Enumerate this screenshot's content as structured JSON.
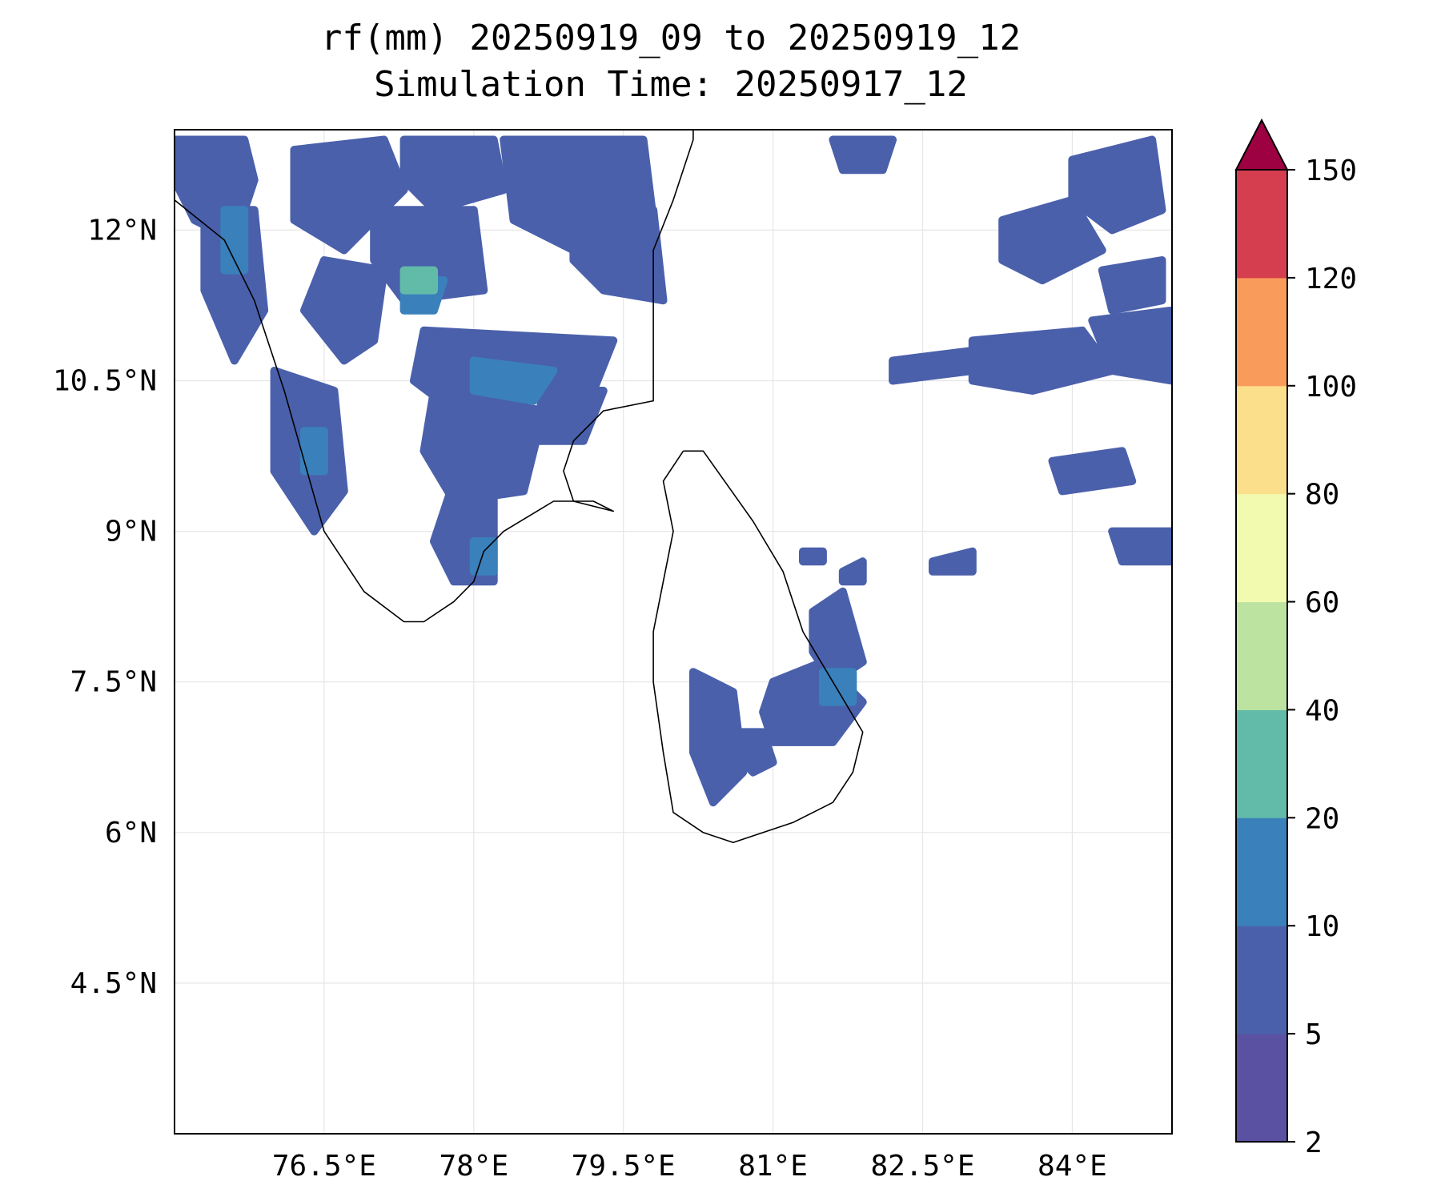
{
  "title": {
    "line1": "rf(mm) 20250919_09 to 20250919_12",
    "line2": "Simulation Time: 20250917_12"
  },
  "map": {
    "extent": {
      "lon_min": 75.0,
      "lon_max": 85.0,
      "lat_min": 3.0,
      "lat_max": 13.0
    },
    "lon_ticks": [
      76.5,
      78,
      79.5,
      81,
      82.5,
      84
    ],
    "lat_ticks": [
      12,
      10.5,
      9,
      7.5,
      6,
      4.5
    ],
    "lon_tick_labels": [
      "76.5°E",
      "78°E",
      "79.5°E",
      "81°E",
      "82.5°E",
      "84°E"
    ],
    "lat_tick_labels": [
      "12°N",
      "10.5°N",
      "9°N",
      "7.5°N",
      "6°N",
      "4.5°N"
    ],
    "gridlines": true,
    "coastline_color": "#000000"
  },
  "colorbar": {
    "levels": [
      2,
      5,
      10,
      20,
      40,
      60,
      80,
      100,
      120,
      150
    ],
    "level_labels": [
      "2",
      "5",
      "10",
      "20",
      "40",
      "60",
      "80",
      "100",
      "120",
      "150"
    ],
    "colors": [
      "#5a51a2",
      "#4a60ab",
      "#3a80bb",
      "#62bba9",
      "#bde3a1",
      "#f2fab0",
      "#fcdf8b",
      "#f99b5b",
      "#d53e4f"
    ],
    "extend_color": "#9e0142",
    "extend": "max"
  },
  "rain_fields": [
    {
      "level": 1,
      "polygons": [
        [
          [
            75.0,
            12.9
          ],
          [
            75.7,
            12.9
          ],
          [
            75.8,
            12.5
          ],
          [
            75.6,
            11.9
          ],
          [
            75.2,
            12.1
          ],
          [
            75.0,
            12.5
          ]
        ],
        [
          [
            75.3,
            12.2
          ],
          [
            75.8,
            12.2
          ],
          [
            75.9,
            11.2
          ],
          [
            75.6,
            10.7
          ],
          [
            75.3,
            11.4
          ]
        ],
        [
          [
            76.2,
            12.8
          ],
          [
            77.1,
            12.9
          ],
          [
            77.3,
            12.4
          ],
          [
            76.7,
            11.8
          ],
          [
            76.2,
            12.1
          ]
        ],
        [
          [
            77.3,
            12.9
          ],
          [
            78.2,
            12.9
          ],
          [
            78.3,
            12.4
          ],
          [
            77.6,
            12.2
          ],
          [
            77.3,
            12.5
          ]
        ],
        [
          [
            78.3,
            12.9
          ],
          [
            79.7,
            12.9
          ],
          [
            79.8,
            12.1
          ],
          [
            79.0,
            11.8
          ],
          [
            78.4,
            12.1
          ]
        ],
        [
          [
            79.0,
            12.0
          ],
          [
            79.8,
            12.2
          ],
          [
            79.9,
            11.3
          ],
          [
            79.3,
            11.4
          ],
          [
            79.0,
            11.7
          ]
        ],
        [
          [
            76.5,
            11.7
          ],
          [
            77.1,
            11.6
          ],
          [
            77.0,
            10.9
          ],
          [
            76.7,
            10.7
          ],
          [
            76.3,
            11.2
          ]
        ],
        [
          [
            77.0,
            12.2
          ],
          [
            78.0,
            12.2
          ],
          [
            78.1,
            11.4
          ],
          [
            77.3,
            11.3
          ],
          [
            77.0,
            11.7
          ]
        ],
        [
          [
            76.0,
            10.6
          ],
          [
            76.6,
            10.4
          ],
          [
            76.7,
            9.4
          ],
          [
            76.4,
            9.0
          ],
          [
            76.0,
            9.6
          ]
        ],
        [
          [
            77.5,
            11.0
          ],
          [
            79.4,
            10.9
          ],
          [
            79.2,
            10.4
          ],
          [
            77.8,
            10.2
          ],
          [
            77.4,
            10.5
          ]
        ],
        [
          [
            77.6,
            10.4
          ],
          [
            78.7,
            10.2
          ],
          [
            78.5,
            9.4
          ],
          [
            77.8,
            9.3
          ],
          [
            77.5,
            9.8
          ]
        ],
        [
          [
            78.7,
            10.4
          ],
          [
            79.3,
            10.4
          ],
          [
            79.1,
            9.9
          ],
          [
            78.6,
            9.9
          ]
        ],
        [
          [
            77.8,
            9.5
          ],
          [
            78.2,
            9.4
          ],
          [
            78.2,
            8.5
          ],
          [
            77.8,
            8.5
          ],
          [
            77.6,
            8.9
          ]
        ],
        [
          [
            82.2,
            10.7
          ],
          [
            83.0,
            10.8
          ],
          [
            83.0,
            10.6
          ],
          [
            82.2,
            10.5
          ]
        ],
        [
          [
            83.0,
            10.9
          ],
          [
            84.1,
            11.0
          ],
          [
            84.4,
            10.6
          ],
          [
            83.6,
            10.4
          ],
          [
            83.0,
            10.5
          ]
        ],
        [
          [
            84.2,
            11.1
          ],
          [
            85.0,
            11.2
          ],
          [
            85.0,
            10.5
          ],
          [
            84.4,
            10.6
          ]
        ],
        [
          [
            83.3,
            12.1
          ],
          [
            84.0,
            12.3
          ],
          [
            84.3,
            11.8
          ],
          [
            83.7,
            11.5
          ],
          [
            83.3,
            11.7
          ]
        ],
        [
          [
            84.0,
            12.7
          ],
          [
            84.8,
            12.9
          ],
          [
            84.9,
            12.2
          ],
          [
            84.4,
            12.0
          ],
          [
            84.0,
            12.3
          ]
        ],
        [
          [
            84.3,
            11.6
          ],
          [
            84.9,
            11.7
          ],
          [
            84.9,
            11.3
          ],
          [
            84.4,
            11.2
          ]
        ],
        [
          [
            81.6,
            12.9
          ],
          [
            82.2,
            12.9
          ],
          [
            82.1,
            12.6
          ],
          [
            81.7,
            12.6
          ]
        ],
        [
          [
            83.8,
            9.7
          ],
          [
            84.5,
            9.8
          ],
          [
            84.6,
            9.5
          ],
          [
            83.9,
            9.4
          ]
        ],
        [
          [
            84.4,
            9.0
          ],
          [
            85.0,
            9.0
          ],
          [
            85.0,
            8.7
          ],
          [
            84.5,
            8.7
          ]
        ],
        [
          [
            82.6,
            8.7
          ],
          [
            83.0,
            8.8
          ],
          [
            83.0,
            8.6
          ],
          [
            82.6,
            8.6
          ]
        ],
        [
          [
            80.2,
            7.6
          ],
          [
            80.6,
            7.4
          ],
          [
            80.7,
            6.6
          ],
          [
            80.4,
            6.3
          ],
          [
            80.2,
            6.8
          ]
        ],
        [
          [
            80.6,
            7.0
          ],
          [
            80.9,
            7.0
          ],
          [
            81.0,
            6.7
          ],
          [
            80.8,
            6.6
          ],
          [
            80.6,
            6.8
          ]
        ],
        [
          [
            81.0,
            7.5
          ],
          [
            81.5,
            7.7
          ],
          [
            81.9,
            7.3
          ],
          [
            81.6,
            6.9
          ],
          [
            81.0,
            6.9
          ],
          [
            80.9,
            7.2
          ]
        ],
        [
          [
            81.4,
            8.2
          ],
          [
            81.7,
            8.4
          ],
          [
            81.9,
            7.7
          ],
          [
            81.6,
            7.5
          ],
          [
            81.4,
            7.8
          ]
        ],
        [
          [
            81.3,
            8.8
          ],
          [
            81.5,
            8.8
          ],
          [
            81.5,
            8.7
          ],
          [
            81.3,
            8.7
          ]
        ],
        [
          [
            81.7,
            8.6
          ],
          [
            81.9,
            8.7
          ],
          [
            81.9,
            8.5
          ],
          [
            81.7,
            8.5
          ]
        ]
      ]
    },
    {
      "level": 2,
      "polygons": [
        [
          [
            75.5,
            12.2
          ],
          [
            75.7,
            12.2
          ],
          [
            75.7,
            11.6
          ],
          [
            75.5,
            11.6
          ]
        ],
        [
          [
            77.3,
            11.5
          ],
          [
            77.7,
            11.5
          ],
          [
            77.6,
            11.2
          ],
          [
            77.3,
            11.2
          ]
        ],
        [
          [
            78.0,
            10.7
          ],
          [
            78.8,
            10.6
          ],
          [
            78.6,
            10.3
          ],
          [
            78.0,
            10.4
          ]
        ],
        [
          [
            81.5,
            7.6
          ],
          [
            81.8,
            7.6
          ],
          [
            81.8,
            7.3
          ],
          [
            81.5,
            7.3
          ]
        ],
        [
          [
            76.3,
            10.0
          ],
          [
            76.5,
            10.0
          ],
          [
            76.5,
            9.6
          ],
          [
            76.3,
            9.6
          ]
        ],
        [
          [
            78.0,
            8.9
          ],
          [
            78.2,
            8.9
          ],
          [
            78.2,
            8.6
          ],
          [
            78.0,
            8.6
          ]
        ]
      ]
    },
    {
      "level": 3,
      "polygons": [
        [
          [
            77.3,
            11.6
          ],
          [
            77.6,
            11.6
          ],
          [
            77.6,
            11.4
          ],
          [
            77.3,
            11.4
          ]
        ]
      ]
    }
  ],
  "coastlines": [
    [
      [
        75.0,
        12.3
      ],
      [
        75.5,
        11.9
      ],
      [
        75.8,
        11.3
      ],
      [
        76.1,
        10.4
      ],
      [
        76.3,
        9.7
      ],
      [
        76.5,
        9.0
      ],
      [
        76.9,
        8.4
      ],
      [
        77.3,
        8.1
      ],
      [
        77.5,
        8.1
      ],
      [
        77.8,
        8.3
      ],
      [
        78.0,
        8.5
      ],
      [
        78.1,
        8.8
      ],
      [
        78.3,
        9.0
      ],
      [
        78.8,
        9.3
      ],
      [
        79.2,
        9.3
      ],
      [
        79.4,
        9.2
      ],
      [
        79.0,
        9.3
      ],
      [
        78.9,
        9.6
      ],
      [
        79.0,
        9.9
      ],
      [
        79.3,
        10.2
      ],
      [
        79.8,
        10.3
      ],
      [
        79.8,
        10.8
      ],
      [
        79.8,
        11.3
      ],
      [
        79.8,
        11.8
      ],
      [
        80.0,
        12.3
      ],
      [
        80.2,
        12.9
      ],
      [
        80.2,
        13.0
      ]
    ],
    [
      [
        80.1,
        9.8
      ],
      [
        80.3,
        9.8
      ],
      [
        80.8,
        9.1
      ],
      [
        81.1,
        8.6
      ],
      [
        81.3,
        8.0
      ],
      [
        81.6,
        7.5
      ],
      [
        81.9,
        7.0
      ],
      [
        81.8,
        6.6
      ],
      [
        81.6,
        6.3
      ],
      [
        81.2,
        6.1
      ],
      [
        80.6,
        5.9
      ],
      [
        80.3,
        6.0
      ],
      [
        80.0,
        6.2
      ],
      [
        79.9,
        6.8
      ],
      [
        79.8,
        7.5
      ],
      [
        79.8,
        8.0
      ],
      [
        79.9,
        8.5
      ],
      [
        80.0,
        9.0
      ],
      [
        79.9,
        9.5
      ],
      [
        80.1,
        9.8
      ]
    ]
  ]
}
